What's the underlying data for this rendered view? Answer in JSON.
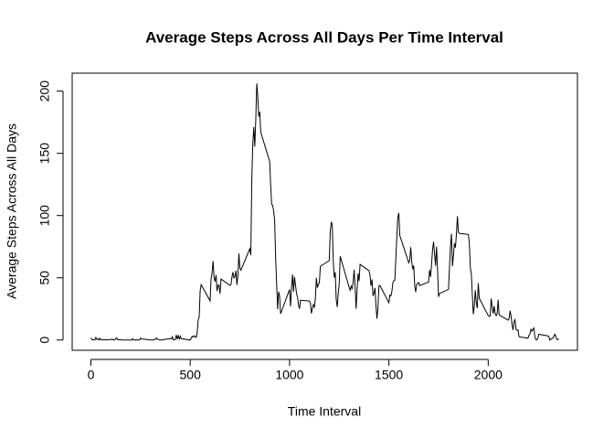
{
  "chart_data": {
    "type": "line",
    "title": "Average Steps Across All Days Per Time Interval",
    "xlabel": "Time Interval",
    "ylabel": "Average Steps Across All Days",
    "xlim": [
      -94.2,
      2449.2
    ],
    "xticks": [
      0,
      500,
      1000,
      1500,
      2000
    ],
    "ylim": [
      -8.25,
      214.42
    ],
    "yticks": [
      0,
      50,
      100,
      150,
      200
    ],
    "series": [
      {
        "color": "#000000",
        "x": [
          0,
          5,
          10,
          15,
          20,
          25,
          30,
          35,
          40,
          45,
          50,
          55,
          100,
          105,
          110,
          115,
          120,
          125,
          130,
          135,
          140,
          145,
          150,
          155,
          200,
          205,
          210,
          215,
          220,
          225,
          230,
          235,
          240,
          245,
          250,
          255,
          300,
          305,
          310,
          315,
          320,
          325,
          330,
          335,
          340,
          345,
          350,
          355,
          400,
          405,
          410,
          415,
          420,
          425,
          430,
          435,
          440,
          445,
          450,
          455,
          500,
          505,
          510,
          515,
          520,
          525,
          530,
          535,
          540,
          545,
          550,
          555,
          600,
          605,
          610,
          615,
          620,
          625,
          630,
          635,
          640,
          645,
          650,
          655,
          700,
          705,
          710,
          715,
          720,
          725,
          730,
          735,
          740,
          745,
          750,
          755,
          800,
          805,
          810,
          815,
          820,
          825,
          830,
          835,
          840,
          845,
          850,
          855,
          900,
          905,
          910,
          915,
          920,
          925,
          930,
          935,
          940,
          945,
          950,
          955,
          1000,
          1005,
          1010,
          1015,
          1020,
          1025,
          1030,
          1035,
          1040,
          1045,
          1050,
          1055,
          1100,
          1105,
          1110,
          1115,
          1120,
          1125,
          1130,
          1135,
          1140,
          1145,
          1150,
          1155,
          1200,
          1205,
          1210,
          1215,
          1220,
          1225,
          1230,
          1235,
          1240,
          1245,
          1250,
          1255,
          1300,
          1305,
          1310,
          1315,
          1320,
          1325,
          1330,
          1335,
          1340,
          1345,
          1350,
          1355,
          1400,
          1405,
          1410,
          1415,
          1420,
          1425,
          1430,
          1435,
          1440,
          1445,
          1450,
          1455,
          1500,
          1505,
          1510,
          1515,
          1520,
          1525,
          1530,
          1535,
          1540,
          1545,
          1550,
          1555,
          1600,
          1605,
          1610,
          1615,
          1620,
          1625,
          1630,
          1635,
          1640,
          1645,
          1650,
          1655,
          1700,
          1705,
          1710,
          1715,
          1720,
          1725,
          1730,
          1735,
          1740,
          1745,
          1750,
          1755,
          1800,
          1805,
          1810,
          1815,
          1820,
          1825,
          1830,
          1835,
          1840,
          1845,
          1850,
          1855,
          1900,
          1905,
          1910,
          1915,
          1920,
          1925,
          1930,
          1935,
          1940,
          1945,
          1950,
          1955,
          2000,
          2005,
          2010,
          2015,
          2020,
          2025,
          2030,
          2035,
          2040,
          2045,
          2050,
          2055,
          2100,
          2105,
          2110,
          2115,
          2120,
          2125,
          2130,
          2135,
          2140,
          2145,
          2150,
          2155,
          2200,
          2205,
          2210,
          2215,
          2220,
          2225,
          2230,
          2235,
          2240,
          2245,
          2250,
          2255,
          2300,
          2305,
          2310,
          2315,
          2320,
          2325,
          2330,
          2335,
          2340,
          2345,
          2350,
          2355
        ],
        "values": [
          1.72,
          0.34,
          0.13,
          0.15,
          0.08,
          2.09,
          0.53,
          0.87,
          0,
          1.47,
          0.3,
          0.13,
          0.32,
          0.68,
          0.15,
          0.34,
          0,
          1.11,
          1.83,
          0.17,
          0.17,
          0.38,
          0.26,
          0,
          0,
          0,
          1.13,
          0,
          0,
          0.13,
          0,
          0.23,
          0,
          0,
          1.55,
          0.94,
          0,
          0,
          0,
          0,
          0.21,
          0.62,
          1.62,
          0.58,
          0.49,
          0.08,
          0,
          0,
          1.19,
          0.94,
          2.57,
          0,
          0.34,
          0.36,
          4.11,
          0.66,
          3.49,
          0.83,
          3.11,
          1.11,
          0,
          1.57,
          3,
          2.25,
          3.32,
          2.96,
          2.09,
          6.06,
          16.02,
          18.34,
          39.45,
          44.49,
          31.49,
          49.26,
          53.77,
          63.45,
          49.96,
          47.08,
          52.15,
          39.34,
          44.02,
          44.17,
          37.36,
          49.04,
          43.81,
          44.38,
          50.51,
          54.51,
          49.92,
          50.98,
          55.68,
          44.32,
          52.26,
          69.55,
          57.85,
          56.15,
          73.38,
          68.21,
          129.43,
          157.53,
          171.15,
          155.4,
          177.3,
          206.17,
          195.92,
          179.57,
          183.4,
          167.02,
          143.45,
          124.04,
          109.11,
          108.11,
          103.72,
          95.96,
          66.21,
          45.23,
          24.79,
          38.75,
          34.98,
          21.06,
          40.57,
          26.98,
          42.42,
          52.66,
          38.92,
          50.79,
          44.28,
          37.42,
          34.7,
          28.34,
          25.09,
          31.94,
          31.36,
          29.68,
          21.32,
          25.55,
          28.38,
          26.47,
          33.43,
          49.98,
          42.04,
          44.6,
          46.04,
          59.19,
          63.87,
          87.7,
          94.85,
          92.77,
          63.4,
          50.17,
          54.47,
          32.42,
          26.53,
          37.74,
          45.06,
          67.28,
          42.34,
          39.89,
          43.26,
          40.98,
          46.25,
          56.43,
          42.75,
          25.13,
          39.96,
          53.55,
          47.32,
          60.81,
          55.75,
          51.96,
          43.58,
          48.7,
          35.47,
          37.55,
          41.85,
          27.51,
          17.11,
          26.08,
          43.62,
          43.77,
          30.02,
          36.08,
          35.49,
          38.85,
          45.96,
          47.75,
          48.13,
          65.32,
          82.91,
          98.66,
          102.11,
          83.96,
          62.13,
          64.13,
          74.55,
          63.17,
          56.91,
          59.77,
          43.87,
          38.57,
          44.66,
          45.45,
          46.21,
          43.68,
          46.62,
          56.3,
          50.72,
          61.23,
          72.72,
          78.94,
          68.94,
          59.66,
          75.09,
          56.51,
          34.77,
          37.45,
          40.68,
          58.02,
          74.7,
          85.32,
          59.26,
          67.77,
          77.7,
          74.25,
          85.34,
          99.45,
          86.58,
          85.6,
          84.87,
          77.83,
          58.04,
          53.36,
          36.32,
          20.72,
          27.4,
          40.02,
          30.21,
          25.55,
          45.66,
          33.53,
          19.62,
          19.02,
          19.34,
          33.34,
          26.81,
          21.17,
          27.3,
          21.34,
          19.55,
          21.32,
          32.3,
          20.15,
          15.94,
          17.23,
          23.45,
          19.25,
          12.45,
          8.02,
          14.66,
          16.3,
          8.68,
          7.79,
          8.13,
          2.62,
          1.45,
          3.68,
          4.81,
          8.51,
          7.08,
          8.7,
          9.75,
          2.21,
          0.32,
          0.11,
          1.6,
          4.6,
          3.3,
          2.85,
          0,
          0.83,
          0.96,
          1.58,
          2.6,
          4.7,
          3.3,
          0.64,
          0.23,
          1.08
        ]
      }
    ]
  }
}
